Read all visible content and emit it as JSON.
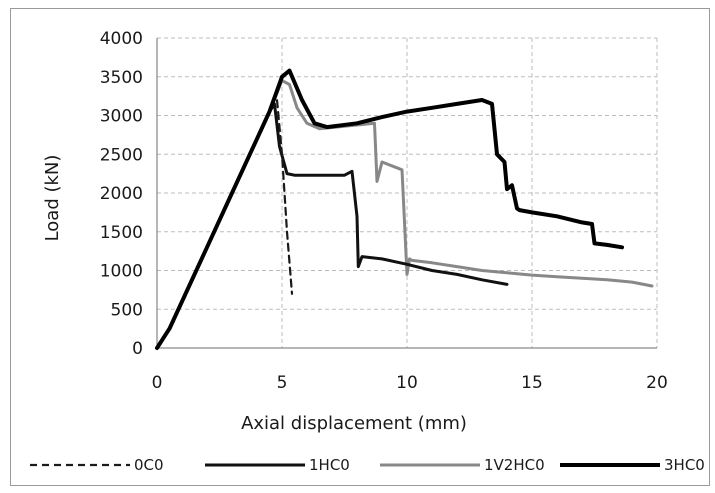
{
  "chart_data": {
    "type": "line",
    "title": "",
    "xlabel": "Axial displacement (mm)",
    "ylabel": "Load (kN)",
    "xlim": [
      0,
      20
    ],
    "ylim": [
      0,
      4000
    ],
    "xticks": [
      "0",
      "5",
      "10",
      "15",
      "20"
    ],
    "yticks": [
      "0",
      "500",
      "1000",
      "1500",
      "2000",
      "2500",
      "3000",
      "3500",
      "4000"
    ],
    "grid": "dashed",
    "legend_position": "bottom",
    "series": [
      {
        "name": "0C0",
        "color": "#1a1a1a",
        "style": "dashed",
        "x": [
          0,
          0.5,
          1,
          2,
          3,
          4,
          4.5,
          4.8,
          5.0,
          5.2,
          5.4
        ],
        "y": [
          0,
          250,
          600,
          1300,
          2000,
          2700,
          3050,
          3200,
          2500,
          1500,
          700
        ]
      },
      {
        "name": "1HC0",
        "color": "#111111",
        "style": "solid",
        "x": [
          0,
          0.5,
          1,
          2,
          3,
          4,
          4.5,
          4.7,
          4.9,
          5.2,
          5.5,
          7.5,
          7.8,
          8.0,
          8.05,
          8.2,
          9,
          10,
          11,
          12,
          13,
          14
        ],
        "y": [
          0,
          250,
          600,
          1300,
          2000,
          2700,
          3050,
          3150,
          2600,
          2250,
          2230,
          2230,
          2280,
          1700,
          1050,
          1180,
          1150,
          1080,
          1000,
          950,
          880,
          820
        ]
      },
      {
        "name": "1V2HC0",
        "color": "#888888",
        "style": "solid",
        "x": [
          0,
          0.5,
          1,
          2,
          3,
          4,
          4.5,
          5.0,
          5.3,
          5.6,
          6.0,
          6.5,
          8.7,
          8.8,
          9.0,
          9.8,
          10.0,
          10.1,
          10.2,
          11,
          12,
          13,
          14,
          15,
          16,
          17,
          18,
          19,
          19.8
        ],
        "y": [
          0,
          250,
          600,
          1300,
          2000,
          2700,
          3050,
          3450,
          3400,
          3100,
          2900,
          2830,
          2900,
          2150,
          2400,
          2300,
          950,
          1150,
          1130,
          1100,
          1050,
          1000,
          970,
          940,
          920,
          900,
          880,
          850,
          800
        ]
      },
      {
        "name": "3HC0",
        "color": "#000000",
        "style": "solid",
        "x": [
          0,
          0.5,
          1,
          2,
          3,
          4,
          4.5,
          5.0,
          5.3,
          5.8,
          6.3,
          6.8,
          8,
          9,
          10,
          11,
          12,
          13,
          13.4,
          13.6,
          13.9,
          14.0,
          14.2,
          14.4,
          14.5,
          15,
          16,
          17,
          17.4,
          17.5,
          18,
          18.6
        ],
        "y": [
          0,
          250,
          600,
          1300,
          2000,
          2700,
          3050,
          3500,
          3580,
          3200,
          2900,
          2850,
          2900,
          2980,
          3050,
          3100,
          3150,
          3200,
          3150,
          2500,
          2400,
          2050,
          2100,
          1800,
          1780,
          1750,
          1700,
          1620,
          1600,
          1350,
          1330,
          1300
        ]
      }
    ]
  }
}
